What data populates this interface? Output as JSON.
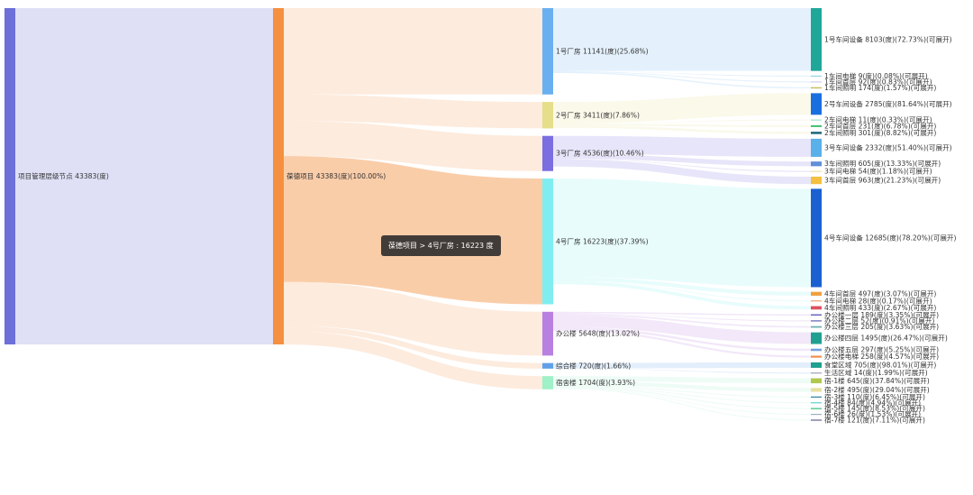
{
  "tooltip": {
    "text": "葆德项目 > 4号厂房 : 16223 度"
  },
  "link_highlight": {
    "source": 1,
    "target": 5
  },
  "nodes": [
    {
      "label": "项目管理层级节点   43383(度)",
      "value": 43383,
      "level": 0,
      "parent": null,
      "color": "#6c70d8"
    },
    {
      "label": "葆德项目   43383(度)(100.00%)",
      "value": 43383,
      "level": 1,
      "parent": 0,
      "color": "#f59040"
    },
    {
      "label": "1号厂房   11141(度)(25.68%)",
      "value": 11141,
      "level": 2,
      "parent": 1,
      "color": "#6ab0f0"
    },
    {
      "label": "2号厂房   3411(度)(7.86%)",
      "value": 3411,
      "level": 2,
      "parent": 1,
      "color": "#e6de8a"
    },
    {
      "label": "3号厂房   4536(度)(10.46%)",
      "value": 4536,
      "level": 2,
      "parent": 1,
      "color": "#7b6ee0"
    },
    {
      "label": "4号厂房   16223(度)(37.39%)",
      "value": 16223,
      "level": 2,
      "parent": 1,
      "color": "#80eef0"
    },
    {
      "label": "办公楼   5648(度)(13.02%)",
      "value": 5648,
      "level": 2,
      "parent": 1,
      "color": "#b880e0"
    },
    {
      "label": "综合楼   720(度)(1.66%)",
      "value": 720,
      "level": 2,
      "parent": 1,
      "color": "#60a0e8"
    },
    {
      "label": "宿舍楼   1704(度)(3.93%)",
      "value": 1704,
      "level": 2,
      "parent": 1,
      "color": "#a0f0c8"
    },
    {
      "label": "1号车间设备   8103(度)(72.73%)(可展开)",
      "value": 8103,
      "level": 3,
      "parent": 2,
      "color": "#1fa79a"
    },
    {
      "label": "1车间电梯   9(度)(0.08%)(可展开)",
      "value": 9,
      "level": 3,
      "parent": 2,
      "color": "#8fd3e8"
    },
    {
      "label": "1车间首层   92(度)(0.83%)(可展开)",
      "value": 92,
      "level": 3,
      "parent": 2,
      "color": "#d0d0e8"
    },
    {
      "label": "1车间照明   174(度)(1.57%)(可展开)",
      "value": 174,
      "level": 3,
      "parent": 2,
      "color": "#c8c060"
    },
    {
      "label": "2号车间设备   2785(度)(81.64%)(可展开)",
      "value": 2785,
      "level": 3,
      "parent": 3,
      "color": "#1a6fe0"
    },
    {
      "label": "2车间电梯   11(度)(0.33%)(可展开)",
      "value": 11,
      "level": 3,
      "parent": 3,
      "color": "#a0e0d0"
    },
    {
      "label": "2车间首层   231(度)(6.78%)(可展开)",
      "value": 231,
      "level": 3,
      "parent": 3,
      "color": "#3cc070"
    },
    {
      "label": "2车间照明   301(度)(8.82%)(可展开)",
      "value": 301,
      "level": 3,
      "parent": 3,
      "color": "#1e6a80"
    },
    {
      "label": "3号车间设备   2332(度)(51.40%)(可展开)",
      "value": 2332,
      "level": 3,
      "parent": 4,
      "color": "#5ab0e8"
    },
    {
      "label": "3车间照明   605(度)(13.33%)(可展开)",
      "value": 605,
      "level": 3,
      "parent": 4,
      "color": "#6090d8"
    },
    {
      "label": "3车间电梯   54(度)(1.18%)(可展开)",
      "value": 54,
      "level": 3,
      "parent": 4,
      "color": "#f0e0a0"
    },
    {
      "label": "3车间首层   963(度)(21.23%)(可展开)",
      "value": 963,
      "level": 3,
      "parent": 4,
      "color": "#f5c040"
    },
    {
      "label": "4号车间设备   12685(度)(78.20%)(可展开)",
      "value": 12685,
      "level": 3,
      "parent": 5,
      "color": "#1a60d0"
    },
    {
      "label": "4车间首层   497(度)(3.07%)(可展开)",
      "value": 497,
      "level": 3,
      "parent": 5,
      "color": "#f0a040"
    },
    {
      "label": "4车间电梯   28(度)(0.17%)(可展开)",
      "value": 28,
      "level": 3,
      "parent": 5,
      "color": "#f0a070"
    },
    {
      "label": "4车间照明   433(度)(2.67%)(可展开)",
      "value": 433,
      "level": 3,
      "parent": 5,
      "color": "#e05060"
    },
    {
      "label": "办公楼一层   189(度)(3.35%)(可展开)",
      "value": 189,
      "level": 3,
      "parent": 6,
      "color": "#7070c0"
    },
    {
      "label": "办公楼二层   52(度)(0.91%)(可展开)",
      "value": 52,
      "level": 3,
      "parent": 6,
      "color": "#6060b0"
    },
    {
      "label": "办公楼三层   205(度)(3.63%)(可展开)",
      "value": 205,
      "level": 3,
      "parent": 6,
      "color": "#70b0b0"
    },
    {
      "label": "办公楼四层   1495(度)(26.47%)(可展开)",
      "value": 1495,
      "level": 3,
      "parent": 6,
      "color": "#20a090"
    },
    {
      "label": "办公楼五层   297(度)(5.25%)(可展开)",
      "value": 297,
      "level": 3,
      "parent": 6,
      "color": "#70a0e0"
    },
    {
      "label": "办公楼电梯   258(度)(4.57%)(可展开)",
      "value": 258,
      "level": 3,
      "parent": 6,
      "color": "#f09050"
    },
    {
      "label": "食堂区域   705(度)(98.01%)(可展开)",
      "value": 705,
      "level": 3,
      "parent": 7,
      "color": "#20a090"
    },
    {
      "label": "生活区域   14(度)(1.99%)(可展开)",
      "value": 14,
      "level": 3,
      "parent": 7,
      "color": "#a0a0c0"
    },
    {
      "label": "宿-1楼   645(度)(37.84%)(可展开)",
      "value": 645,
      "level": 3,
      "parent": 8,
      "color": "#b0c850"
    },
    {
      "label": "宿-2楼   495(度)(29.04%)(可展开)",
      "value": 495,
      "level": 3,
      "parent": 8,
      "color": "#e8e0a0"
    },
    {
      "label": "宿-3楼   110(度)(6.45%)(可展开)",
      "value": 110,
      "level": 3,
      "parent": 8,
      "color": "#3080a0"
    },
    {
      "label": "宿-4楼   84(度)(4.94%)(可展开)",
      "value": 84,
      "level": 3,
      "parent": 8,
      "color": "#60d0d0"
    },
    {
      "label": "宿-5楼   145(度)(8.53%)(可展开)",
      "value": 145,
      "level": 3,
      "parent": 8,
      "color": "#40c080"
    },
    {
      "label": "宿-6楼   26(度)(1.53%)(可展开)",
      "value": 26,
      "level": 3,
      "parent": 8,
      "color": "#a0b0c0"
    },
    {
      "label": "宿-7楼   121(度)(7.11%)(可展开)",
      "value": 121,
      "level": 3,
      "parent": 8,
      "color": "#606090"
    }
  ]
}
